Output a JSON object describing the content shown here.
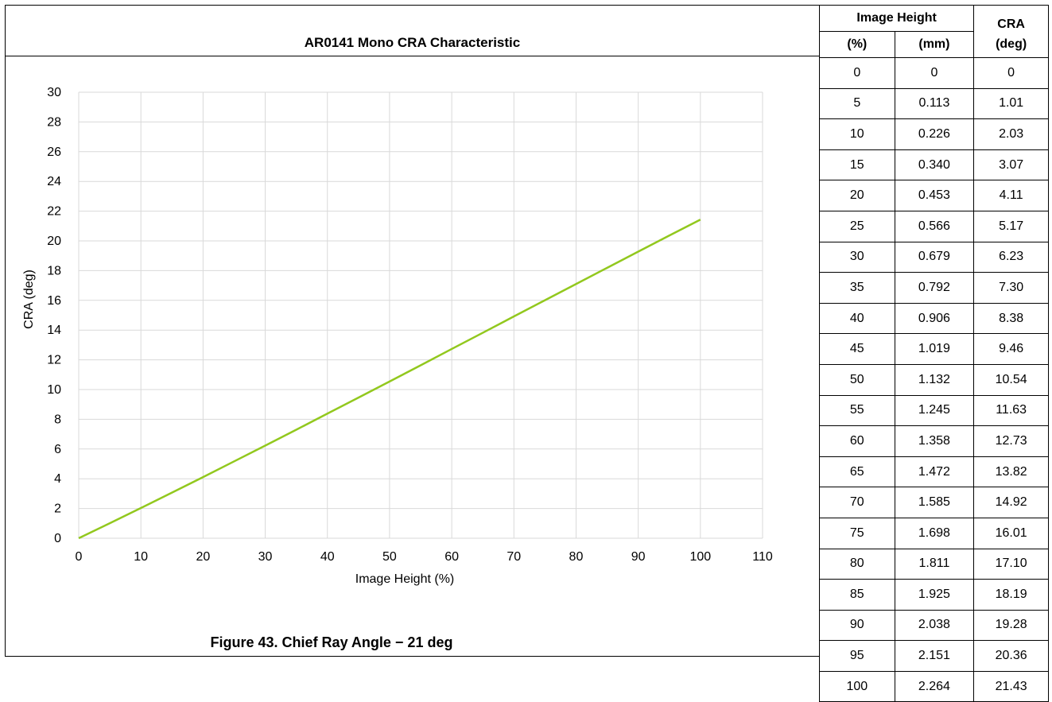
{
  "chart_title": "AR0141 Mono CRA Characteristic",
  "caption": "Figure 43. Chief Ray Angle − 21 deg",
  "chart_data": {
    "type": "line",
    "title": "AR0141 Mono CRA Characteristic",
    "xlabel": "Image Height (%)",
    "ylabel": "CRA (deg)",
    "xlim": [
      0,
      110
    ],
    "ylim": [
      0,
      30
    ],
    "xticks": [
      "0",
      "10",
      "20",
      "30",
      "40",
      "50",
      "60",
      "70",
      "80",
      "90",
      "100",
      "110"
    ],
    "yticks": [
      "0",
      "2",
      "4",
      "6",
      "8",
      "10",
      "12",
      "14",
      "16",
      "18",
      "20",
      "22",
      "24",
      "26",
      "28",
      "30"
    ],
    "grid": true,
    "line_color": "#92c81e",
    "series": [
      {
        "x": [
          0,
          5,
          10,
          15,
          20,
          25,
          30,
          35,
          40,
          45,
          50,
          55,
          60,
          65,
          70,
          75,
          80,
          85,
          90,
          95,
          100
        ],
        "values": [
          0,
          1.01,
          2.03,
          3.07,
          4.11,
          5.17,
          6.23,
          7.3,
          8.38,
          9.46,
          10.54,
          11.63,
          12.73,
          13.82,
          14.92,
          16.01,
          17.1,
          18.19,
          19.28,
          20.36,
          21.43
        ]
      }
    ]
  },
  "table": {
    "header_image_height": "Image Height",
    "header_cra": "CRA",
    "header_pct": "(%)",
    "header_mm": "(mm)",
    "header_deg": "(deg)",
    "rows": [
      [
        "0",
        "0",
        "0"
      ],
      [
        "5",
        "0.113",
        "1.01"
      ],
      [
        "10",
        "0.226",
        "2.03"
      ],
      [
        "15",
        "0.340",
        "3.07"
      ],
      [
        "20",
        "0.453",
        "4.11"
      ],
      [
        "25",
        "0.566",
        "5.17"
      ],
      [
        "30",
        "0.679",
        "6.23"
      ],
      [
        "35",
        "0.792",
        "7.30"
      ],
      [
        "40",
        "0.906",
        "8.38"
      ],
      [
        "45",
        "1.019",
        "9.46"
      ],
      [
        "50",
        "1.132",
        "10.54"
      ],
      [
        "55",
        "1.245",
        "11.63"
      ],
      [
        "60",
        "1.358",
        "12.73"
      ],
      [
        "65",
        "1.472",
        "13.82"
      ],
      [
        "70",
        "1.585",
        "14.92"
      ],
      [
        "75",
        "1.698",
        "16.01"
      ],
      [
        "80",
        "1.811",
        "17.10"
      ],
      [
        "85",
        "1.925",
        "18.19"
      ],
      [
        "90",
        "2.038",
        "19.28"
      ],
      [
        "95",
        "2.151",
        "20.36"
      ],
      [
        "100",
        "2.264",
        "21.43"
      ]
    ]
  }
}
